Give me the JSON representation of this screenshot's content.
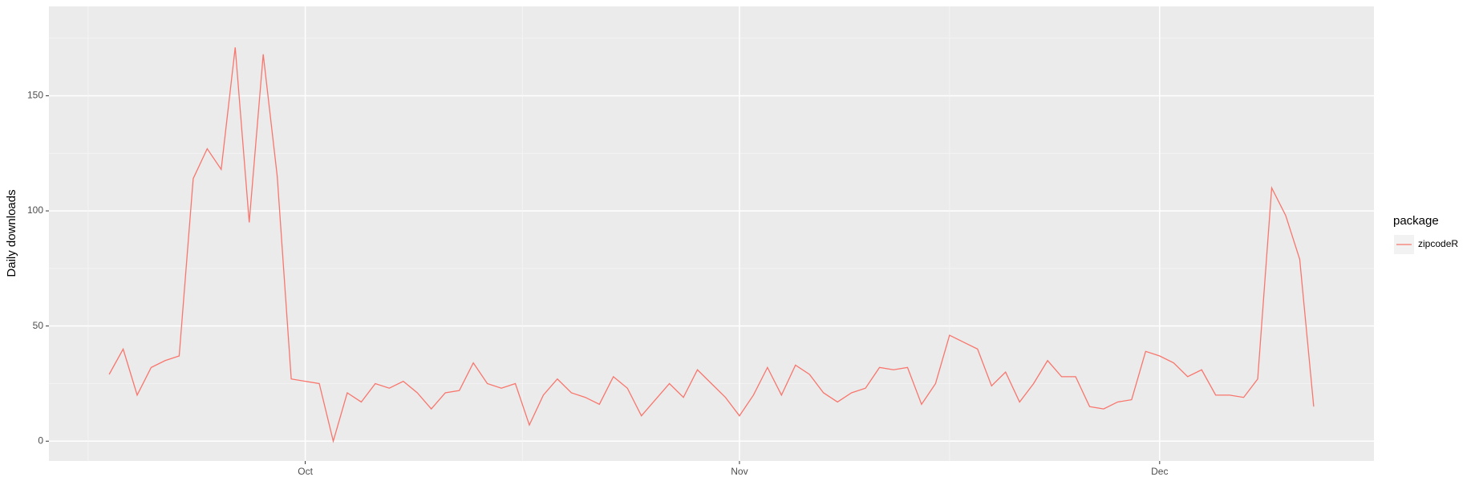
{
  "chart_data": {
    "type": "line",
    "y_label": "Daily downloads",
    "legend_title": "package",
    "legend_position": "right",
    "grid": true,
    "categories": [
      null,
      null,
      null,
      null,
      null,
      null,
      null,
      null,
      null,
      null,
      null,
      null,
      null,
      null,
      "Oct",
      null,
      null,
      null,
      null,
      null,
      null,
      null,
      null,
      null,
      null,
      null,
      null,
      null,
      null,
      null,
      null,
      null,
      null,
      null,
      null,
      null,
      null,
      null,
      null,
      null,
      null,
      null,
      null,
      null,
      null,
      "Nov",
      null,
      null,
      null,
      null,
      null,
      null,
      null,
      null,
      null,
      null,
      null,
      null,
      null,
      null,
      null,
      null,
      null,
      null,
      null,
      null,
      null,
      null,
      null,
      null,
      null,
      null,
      null,
      null,
      null,
      "Dec",
      null,
      null,
      null,
      null,
      null,
      null,
      null,
      null,
      null,
      null,
      null
    ],
    "series": [
      {
        "name": "zipcodeR",
        "color": "#f8766d",
        "values": [
          29,
          40,
          20,
          32,
          35,
          37,
          114,
          127,
          118,
          171,
          95,
          168,
          115,
          27,
          26,
          25,
          0,
          21,
          17,
          25,
          23,
          26,
          21,
          14,
          21,
          22,
          34,
          25,
          23,
          25,
          7,
          20,
          27,
          21,
          19,
          16,
          28,
          23,
          11,
          18,
          25,
          19,
          31,
          25,
          19,
          11,
          20,
          32,
          20,
          33,
          29,
          21,
          17,
          21,
          23,
          32,
          31,
          32,
          16,
          25,
          46,
          43,
          40,
          24,
          30,
          17,
          25,
          35,
          28,
          28,
          15,
          14,
          17,
          18,
          39,
          37,
          34,
          28,
          31,
          20,
          20,
          19,
          27,
          110,
          98,
          79,
          15
        ]
      }
    ],
    "ylim": [
      -8.6,
      188.8
    ],
    "yticks": [
      0,
      50,
      100,
      150
    ]
  }
}
